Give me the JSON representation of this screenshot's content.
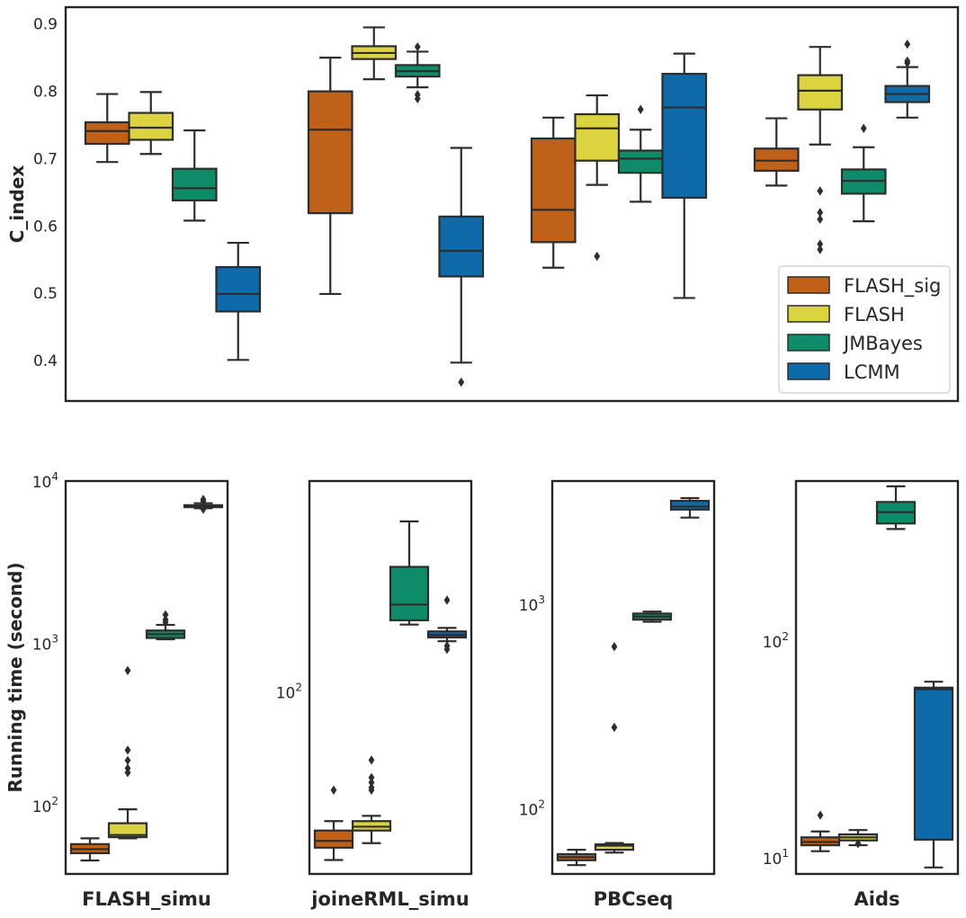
{
  "colors": {
    "FLASH_sig": "#c0611a",
    "FLASH": "#dcd341",
    "JMBayes": "#0e8c69",
    "LCMM": "#0e6aa8",
    "line": "#2d2d2d"
  },
  "chart_data": [
    {
      "type": "box",
      "ylabel": "C_index",
      "yticks": [
        "0.4",
        "0.5",
        "0.6",
        "0.7",
        "0.8",
        "0.9"
      ],
      "ylim": [
        0.34,
        0.925
      ],
      "legend": {
        "position": "lower right",
        "entries": [
          "FLASH_sig",
          "FLASH",
          "JMBayes",
          "LCMM"
        ]
      },
      "groups": [
        {
          "name": "FLASH_simu",
          "boxes": [
            {
              "series": "FLASH_sig",
              "whislo": 0.695,
              "q1": 0.722,
              "med": 0.741,
              "q3": 0.754,
              "whishi": 0.796,
              "fliers": []
            },
            {
              "series": "FLASH",
              "whislo": 0.707,
              "q1": 0.728,
              "med": 0.746,
              "q3": 0.768,
              "whishi": 0.799,
              "fliers": []
            },
            {
              "series": "JMBayes",
              "whislo": 0.608,
              "q1": 0.638,
              "med": 0.656,
              "q3": 0.685,
              "whishi": 0.742,
              "fliers": []
            },
            {
              "series": "LCMM",
              "whislo": 0.401,
              "q1": 0.473,
              "med": 0.499,
              "q3": 0.539,
              "whishi": 0.575,
              "fliers": []
            }
          ]
        },
        {
          "name": "joineRML_simu",
          "boxes": [
            {
              "series": "FLASH_sig",
              "whislo": 0.499,
              "q1": 0.619,
              "med": 0.743,
              "q3": 0.8,
              "whishi": 0.85,
              "fliers": []
            },
            {
              "series": "FLASH",
              "whislo": 0.818,
              "q1": 0.848,
              "med": 0.857,
              "q3": 0.867,
              "whishi": 0.895,
              "fliers": []
            },
            {
              "series": "JMBayes",
              "whislo": 0.806,
              "q1": 0.822,
              "med": 0.83,
              "q3": 0.839,
              "whishi": 0.859,
              "fliers": [
                0.795,
                0.789,
                0.866
              ]
            },
            {
              "series": "LCMM",
              "whislo": 0.397,
              "q1": 0.525,
              "med": 0.563,
              "q3": 0.614,
              "whishi": 0.716,
              "fliers": [
                0.368
              ]
            }
          ]
        },
        {
          "name": "PBCseq",
          "boxes": [
            {
              "series": "FLASH_sig",
              "whislo": 0.538,
              "q1": 0.576,
              "med": 0.624,
              "q3": 0.73,
              "whishi": 0.761,
              "fliers": []
            },
            {
              "series": "FLASH",
              "whislo": 0.661,
              "q1": 0.697,
              "med": 0.745,
              "q3": 0.766,
              "whishi": 0.794,
              "fliers": [
                0.555
              ]
            },
            {
              "series": "JMBayes",
              "whislo": 0.636,
              "q1": 0.679,
              "med": 0.7,
              "q3": 0.712,
              "whishi": 0.743,
              "fliers": [
                0.773
              ]
            },
            {
              "series": "LCMM",
              "whislo": 0.493,
              "q1": 0.642,
              "med": 0.776,
              "q3": 0.826,
              "whishi": 0.856,
              "fliers": []
            }
          ]
        },
        {
          "name": "Aids",
          "boxes": [
            {
              "series": "FLASH_sig",
              "whislo": 0.66,
              "q1": 0.682,
              "med": 0.697,
              "q3": 0.715,
              "whishi": 0.76,
              "fliers": []
            },
            {
              "series": "FLASH",
              "whislo": 0.721,
              "q1": 0.773,
              "med": 0.801,
              "q3": 0.824,
              "whishi": 0.866,
              "fliers": [
                0.652,
                0.62,
                0.61,
                0.573,
                0.565
              ]
            },
            {
              "series": "JMBayes",
              "whislo": 0.607,
              "q1": 0.648,
              "med": 0.667,
              "q3": 0.684,
              "whishi": 0.717,
              "fliers": [
                0.745
              ]
            },
            {
              "series": "LCMM",
              "whislo": 0.761,
              "q1": 0.784,
              "med": 0.796,
              "q3": 0.808,
              "whishi": 0.836,
              "fliers": [
                0.87,
                0.845,
                0.842
              ]
            }
          ]
        }
      ]
    },
    {
      "type": "box",
      "ylabel": "Running time (second)",
      "yscale": "log",
      "panels": [
        {
          "name": "FLASH_simu",
          "ylim": [
            38,
            10000
          ],
          "yticks": [
            {
              "base": "10",
              "exp": "2",
              "value": 100
            },
            {
              "base": "10",
              "exp": "3",
              "value": 1000
            },
            {
              "base": "10",
              "exp": "4",
              "value": 10000
            }
          ],
          "boxes": [
            {
              "series": "FLASH_sig",
              "whislo": 46,
              "q1": 51,
              "med": 54,
              "q3": 58,
              "whishi": 63,
              "fliers": []
            },
            {
              "series": "FLASH",
              "whislo": 63,
              "q1": 64,
              "med": 66,
              "q3": 78,
              "whishi": 95,
              "fliers": [
                160,
                170,
                190,
                220,
                680
              ]
            },
            {
              "series": "JMBayes",
              "whislo": 1060,
              "q1": 1080,
              "med": 1140,
              "q3": 1200,
              "whishi": 1300,
              "fliers": [
                1350,
                1400,
                1500
              ]
            },
            {
              "series": "LCMM",
              "whislo": 6800,
              "q1": 6900,
              "med": 7000,
              "q3": 7100,
              "whishi": 7300,
              "fliers": [
                6700,
                7500,
                7700
              ]
            }
          ]
        },
        {
          "name": "joineRML_simu",
          "ylim": [
            17.5,
            750
          ],
          "yticks": [
            {
              "base": "10",
              "exp": "2",
              "value": 100
            }
          ],
          "boxes": [
            {
              "series": "FLASH_sig",
              "whislo": 20.0,
              "q1": 22.5,
              "med": 24.0,
              "q3": 26.5,
              "whishi": 29.0,
              "fliers": [
                39
              ]
            },
            {
              "series": "FLASH",
              "whislo": 23.5,
              "q1": 26.5,
              "med": 27.5,
              "q3": 29.0,
              "whishi": 30.5,
              "fliers": [
                39,
                40,
                42,
                44,
                52
              ]
            },
            {
              "series": "JMBayes",
              "whislo": 190,
              "q1": 198,
              "med": 230,
              "q3": 330,
              "whishi": 510,
              "fliers": []
            },
            {
              "series": "LCMM",
              "whislo": 162,
              "q1": 168,
              "med": 172,
              "q3": 178,
              "whishi": 184,
              "fliers": [
                150,
                155,
                240
              ]
            }
          ]
        },
        {
          "name": "PBCseq",
          "ylim": [
            48,
            4000
          ],
          "yticks": [
            {
              "base": "10",
              "exp": "2",
              "value": 100
            },
            {
              "base": "10",
              "exp": "3",
              "value": 1000
            }
          ],
          "boxes": [
            {
              "series": "FLASH_sig",
              "whislo": 53,
              "q1": 56,
              "med": 58,
              "q3": 60,
              "whishi": 63,
              "fliers": []
            },
            {
              "series": "FLASH",
              "whislo": 61,
              "q1": 63,
              "med": 66,
              "q3": 67,
              "whishi": 68,
              "fliers": [
                250,
                620
              ]
            },
            {
              "series": "JMBayes",
              "whislo": 820,
              "q1": 840,
              "med": 870,
              "q3": 900,
              "whishi": 920,
              "fliers": []
            },
            {
              "series": "LCMM",
              "whislo": 2650,
              "q1": 2900,
              "med": 3000,
              "q3": 3200,
              "whishi": 3300,
              "fliers": []
            }
          ]
        },
        {
          "name": "Aids",
          "ylim": [
            8.4,
            550
          ],
          "yticks": [
            {
              "base": "10",
              "exp": "1",
              "value": 10
            },
            {
              "base": "10",
              "exp": "2",
              "value": 100
            }
          ],
          "boxes": [
            {
              "series": "FLASH_sig",
              "whislo": 10.7,
              "q1": 11.4,
              "med": 11.8,
              "q3": 12.4,
              "whishi": 13.2,
              "fliers": [
                15.7
              ]
            },
            {
              "series": "FLASH",
              "whislo": 11.4,
              "q1": 12.0,
              "med": 12.4,
              "q3": 12.8,
              "whishi": 13.4,
              "fliers": [
                11.6
              ]
            },
            {
              "series": "JMBayes",
              "whislo": 330,
              "q1": 350,
              "med": 395,
              "q3": 440,
              "whishi": 520,
              "fliers": []
            },
            {
              "series": "LCMM",
              "whislo": 9.0,
              "q1": 12.1,
              "med": 60,
              "q3": 61,
              "whishi": 65,
              "fliers": []
            }
          ]
        }
      ]
    }
  ]
}
